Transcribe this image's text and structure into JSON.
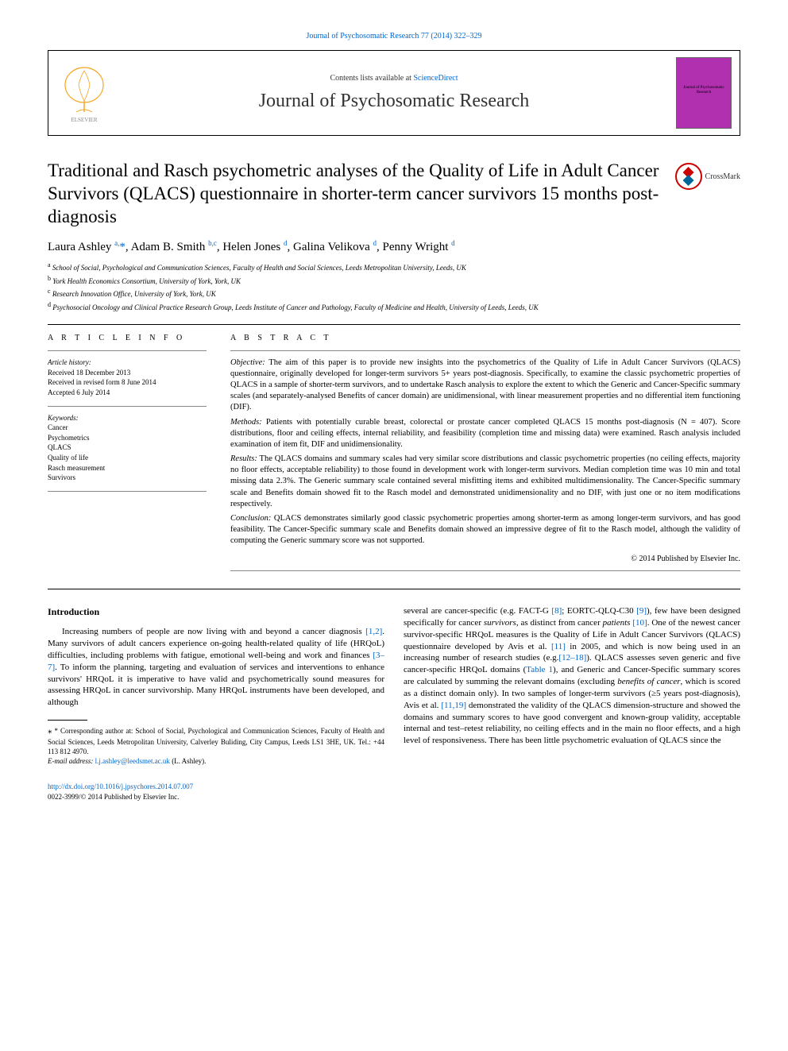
{
  "top_link": {
    "prefix": "Journal of Psychosomatic Research 77 (2014) 322–329"
  },
  "header": {
    "contents_prefix": "Contents lists available at ",
    "contents_link": "ScienceDirect",
    "journal_name": "Journal of Psychosomatic Research",
    "cover_text": "Journal of\nPsychosomatic Research"
  },
  "article": {
    "title": "Traditional and Rasch psychometric analyses of the Quality of Life in Adult Cancer Survivors (QLACS) questionnaire in shorter-term cancer survivors 15 months post-diagnosis",
    "crossmark": "CrossMark"
  },
  "authors_html": "Laura Ashley <sup>a,</sup><span class='ast'>*</span>, Adam B. Smith <sup>b,c</sup>, Helen Jones <sup>d</sup>, Galina Velikova <sup>d</sup>, Penny Wright <sup>d</sup>",
  "affiliations": [
    {
      "sup": "a",
      "text": " School of Social, Psychological and Communication Sciences, Faculty of Health and Social Sciences, Leeds Metropolitan University, Leeds, UK"
    },
    {
      "sup": "b",
      "text": " York Health Economics Consortium, University of York, York, UK"
    },
    {
      "sup": "c",
      "text": " Research Innovation Office, University of York, York, UK"
    },
    {
      "sup": "d",
      "text": " Psychosocial Oncology and Clinical Practice Research Group, Leeds Institute of Cancer and Pathology, Faculty of Medicine and Health, University of Leeds, Leeds, UK"
    }
  ],
  "info": {
    "heading_info": "a r t i c l e   i n f o",
    "heading_abstract": "a b s t r a c t",
    "history_label": "Article history:",
    "history": [
      "Received 18 December 2013",
      "Received in revised form 8 June 2014",
      "Accepted 6 July 2014"
    ],
    "keywords_label": "Keywords:",
    "keywords": [
      "Cancer",
      "Psychometrics",
      "QLACS",
      "Quality of life",
      "Rasch measurement",
      "Survivors"
    ]
  },
  "abstract": {
    "objective_label": "Objective:",
    "objective": " The aim of this paper is to provide new insights into the psychometrics of the Quality of Life in Adult Cancer Survivors (QLACS) questionnaire, originally developed for longer-term survivors 5+ years post-diagnosis. Specifically, to examine the classic psychometric properties of QLACS in a sample of shorter-term survivors, and to undertake Rasch analysis to explore the extent to which the Generic and Cancer-Specific summary scales (and separately-analysed Benefits of cancer domain) are unidimensional, with linear measurement properties and no differential item functioning (DIF).",
    "methods_label": "Methods:",
    "methods": " Patients with potentially curable breast, colorectal or prostate cancer completed QLACS 15 months post-diagnosis (N = 407). Score distributions, floor and ceiling effects, internal reliability, and feasibility (completion time and missing data) were examined. Rasch analysis included examination of item fit, DIF and unidimensionality.",
    "results_label": "Results:",
    "results": " The QLACS domains and summary scales had very similar score distributions and classic psychometric properties (no ceiling effects, majority no floor effects, acceptable reliability) to those found in development work with longer-term survivors. Median completion time was 10 min and total missing data 2.3%. The Generic summary scale contained several misfitting items and exhibited multidimensionality. The Cancer-Specific summary scale and Benefits domain showed fit to the Rasch model and demonstrated unidimensionality and no DIF, with just one or no item modifications respectively.",
    "conclusion_label": "Conclusion:",
    "conclusion": " QLACS demonstrates similarly good classic psychometric properties among shorter-term as among longer-term survivors, and has good feasibility. The Cancer-Specific summary scale and Benefits domain showed an impressive degree of fit to the Rasch model, although the validity of computing the Generic summary score was not supported.",
    "copyright": "© 2014 Published by Elsevier Inc."
  },
  "body": {
    "intro_heading": "Introduction",
    "col1_p1_a": "Increasing numbers of people are now living with and beyond a cancer diagnosis ",
    "col1_p1_ref1": "[1,2]",
    "col1_p1_b": ". Many survivors of adult cancers experience on-going health-related quality of life (HRQoL) difficulties, including problems with fatigue, emotional well-being and work and finances ",
    "col1_p1_ref2": "[3–7]",
    "col1_p1_c": ". To inform the planning, targeting and evaluation of services and interventions to enhance survivors' HRQoL it is imperative to have valid and psychometrically sound measures for assessing HRQoL in cancer survivorship. Many HRQoL instruments have been developed, and although",
    "col2_p1_a": "several are cancer-specific (e.g. FACT-G ",
    "col2_ref8": "[8]",
    "col2_p1_b": "; EORTC-QLQ-C30 ",
    "col2_ref9": "[9]",
    "col2_p1_c": "), few have been designed specifically for cancer ",
    "col2_em1": "survivors",
    "col2_p1_d": ", as distinct from cancer ",
    "col2_em2": "patients",
    "col2_p1_e": " ",
    "col2_ref10": "[10]",
    "col2_p1_f": ". One of the newest cancer survivor-specific HRQoL measures is the Quality of Life in Adult Cancer Survivors (QLACS) questionnaire developed by Avis et al. ",
    "col2_ref11": "[11]",
    "col2_p1_g": " in 2005, and which is now being used in an increasing number of research studies (e.g.",
    "col2_ref1218": "[12–18]",
    "col2_p1_h": "). QLACS assesses seven generic and five cancer-specific HRQoL domains (",
    "col2_reftable": "Table 1",
    "col2_p1_i": "), and Generic and Cancer-Specific summary scores are calculated by summing the relevant domains (excluding ",
    "col2_em3": "benefits of cancer",
    "col2_p1_j": ", which is scored as a distinct domain only). In two samples of longer-term survivors (≥5 years post-diagnosis), Avis et al. ",
    "col2_ref1119": "[11,19]",
    "col2_p1_k": " demonstrated the validity of the QLACS dimension-structure and showed the domains and summary scores to have good convergent and known-group validity, acceptable internal and test–retest reliability, no ceiling effects and in the main no floor effects, and a high level of responsiveness. There has been little psychometric evaluation of QLACS since the"
  },
  "footnotes": {
    "corr_prefix": "* Corresponding author at: School of Social, Psychological and Communication Sciences, Faculty of Health and Social Sciences, Leeds Metropolitan University, Calverley Buliding, City Campus, Leeds LS1 3HE, UK. Tel.: +44 113 812 4970.",
    "email_label": "E-mail address: ",
    "email": "l.j.ashley@leedsmet.ac.uk",
    "email_suffix": " (L. Ashley)."
  },
  "bottom": {
    "doi": "http://dx.doi.org/10.1016/j.jpsychores.2014.07.007",
    "issn_line": "0022-3999/© 2014 Published by Elsevier Inc."
  },
  "colors": {
    "link": "#0066cc",
    "cover_bg": "#b030b0",
    "crossmark_red": "#c00",
    "crossmark_blue": "#069"
  }
}
